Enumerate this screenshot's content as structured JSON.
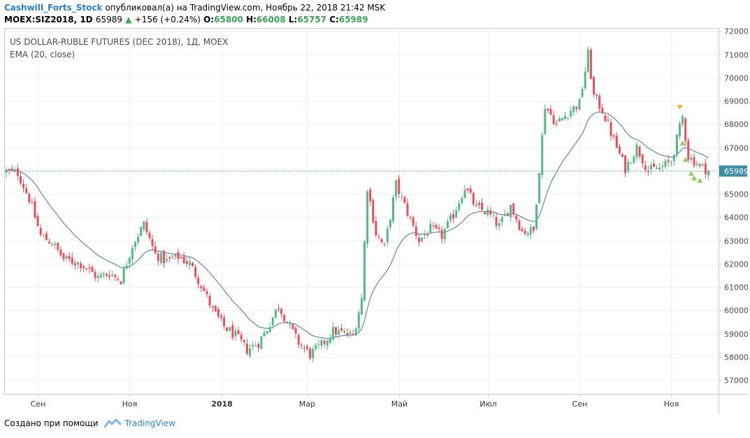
{
  "header": {
    "author": "Cashwill_Forts_Stock",
    "published": "опубликовал(а) на TradingView.com, Ноябрь 22, 2018 21:42 MSK"
  },
  "quote": {
    "symbol": "MOEX:SIZ2018, 1D",
    "last": "65989",
    "change": "+156 (+0.24%)",
    "o_label": "O:",
    "o_value": "65800",
    "h_label": "H:",
    "h_value": "66008",
    "l_label": "L:",
    "l_value": "65757",
    "c_label": "C:",
    "c_value": "65989"
  },
  "legend": {
    "title": "US DOLLAR-RUBLE FUTURES (DEC 2018), 1Д, MOEX",
    "indicator": "EMA (20, close)"
  },
  "footer": {
    "created_with": "Создано при помощи",
    "brand": "TradingView"
  },
  "colors": {
    "up": "#53b987",
    "down": "#eb4d5c",
    "ema": "#6c8fb4",
    "grid": "#eef1f5",
    "last_line": "#3b8fa3",
    "price_label_bg": "#3b8fa3"
  },
  "chart_data": {
    "type": "candlestick",
    "title": "US DOLLAR-RUBLE FUTURES (DEC 2018), 1Д, MOEX",
    "y_ticks": [
      57000,
      58000,
      59000,
      60000,
      61000,
      62000,
      63000,
      64000,
      65000,
      66000,
      67000,
      68000,
      69000,
      70000,
      71000,
      72000
    ],
    "ylim": [
      56400,
      72100
    ],
    "x_ticks": [
      {
        "label": "Сен",
        "index": 11
      },
      {
        "label": "Ноя",
        "index": 43
      },
      {
        "label": "2018",
        "index": 75
      },
      {
        "label": "Мар",
        "index": 105
      },
      {
        "label": "Май",
        "index": 137
      },
      {
        "label": "Июл",
        "index": 168
      },
      {
        "label": "Сен",
        "index": 200
      },
      {
        "label": "Ноя",
        "index": 232
      }
    ],
    "n_bars": 246,
    "last_price": 65989,
    "last_price_label": "65989",
    "ema_name": "EMA (20, close)",
    "keypoints": [
      [
        0,
        65950
      ],
      [
        4,
        65900
      ],
      [
        8,
        64800
      ],
      [
        12,
        63200
      ],
      [
        16,
        62900
      ],
      [
        20,
        62200
      ],
      [
        26,
        62000
      ],
      [
        32,
        61400
      ],
      [
        36,
        61600
      ],
      [
        40,
        61300
      ],
      [
        44,
        62800
      ],
      [
        48,
        63700
      ],
      [
        52,
        62400
      ],
      [
        56,
        62100
      ],
      [
        60,
        62300
      ],
      [
        64,
        62000
      ],
      [
        68,
        61100
      ],
      [
        72,
        60000
      ],
      [
        76,
        59300
      ],
      [
        80,
        58900
      ],
      [
        84,
        58300
      ],
      [
        88,
        58600
      ],
      [
        91,
        59200
      ],
      [
        95,
        60200
      ],
      [
        98,
        59500
      ],
      [
        102,
        58600
      ],
      [
        106,
        58100
      ],
      [
        110,
        58500
      ],
      [
        114,
        59100
      ],
      [
        118,
        59000
      ],
      [
        121,
        58900
      ],
      [
        124,
        60500
      ],
      [
        126,
        65300
      ],
      [
        129,
        63300
      ],
      [
        132,
        62700
      ],
      [
        136,
        65400
      ],
      [
        140,
        64200
      ],
      [
        144,
        63000
      ],
      [
        148,
        63500
      ],
      [
        152,
        63200
      ],
      [
        156,
        64100
      ],
      [
        160,
        65300
      ],
      [
        164,
        64400
      ],
      [
        168,
        64200
      ],
      [
        172,
        63600
      ],
      [
        176,
        64500
      ],
      [
        180,
        63400
      ],
      [
        184,
        63400
      ],
      [
        188,
        68800
      ],
      [
        192,
        68000
      ],
      [
        196,
        68500
      ],
      [
        200,
        68900
      ],
      [
        203,
        71000
      ],
      [
        205,
        69200
      ],
      [
        208,
        68600
      ],
      [
        212,
        67300
      ],
      [
        216,
        66100
      ],
      [
        220,
        67000
      ],
      [
        224,
        66000
      ],
      [
        228,
        66100
      ],
      [
        232,
        66400
      ],
      [
        236,
        68300
      ],
      [
        238,
        66600
      ],
      [
        241,
        66300
      ],
      [
        245,
        65989
      ]
    ],
    "signals": [
      {
        "type": "sell",
        "index": 235,
        "price": 68700
      },
      {
        "type": "buy",
        "index": 236,
        "price": 67200
      },
      {
        "type": "buy",
        "index": 237,
        "price": 66500
      },
      {
        "type": "buy",
        "index": 239,
        "price": 65900
      },
      {
        "type": "buy",
        "index": 240,
        "price": 65700
      },
      {
        "type": "buy",
        "index": 242,
        "price": 65600
      }
    ]
  }
}
